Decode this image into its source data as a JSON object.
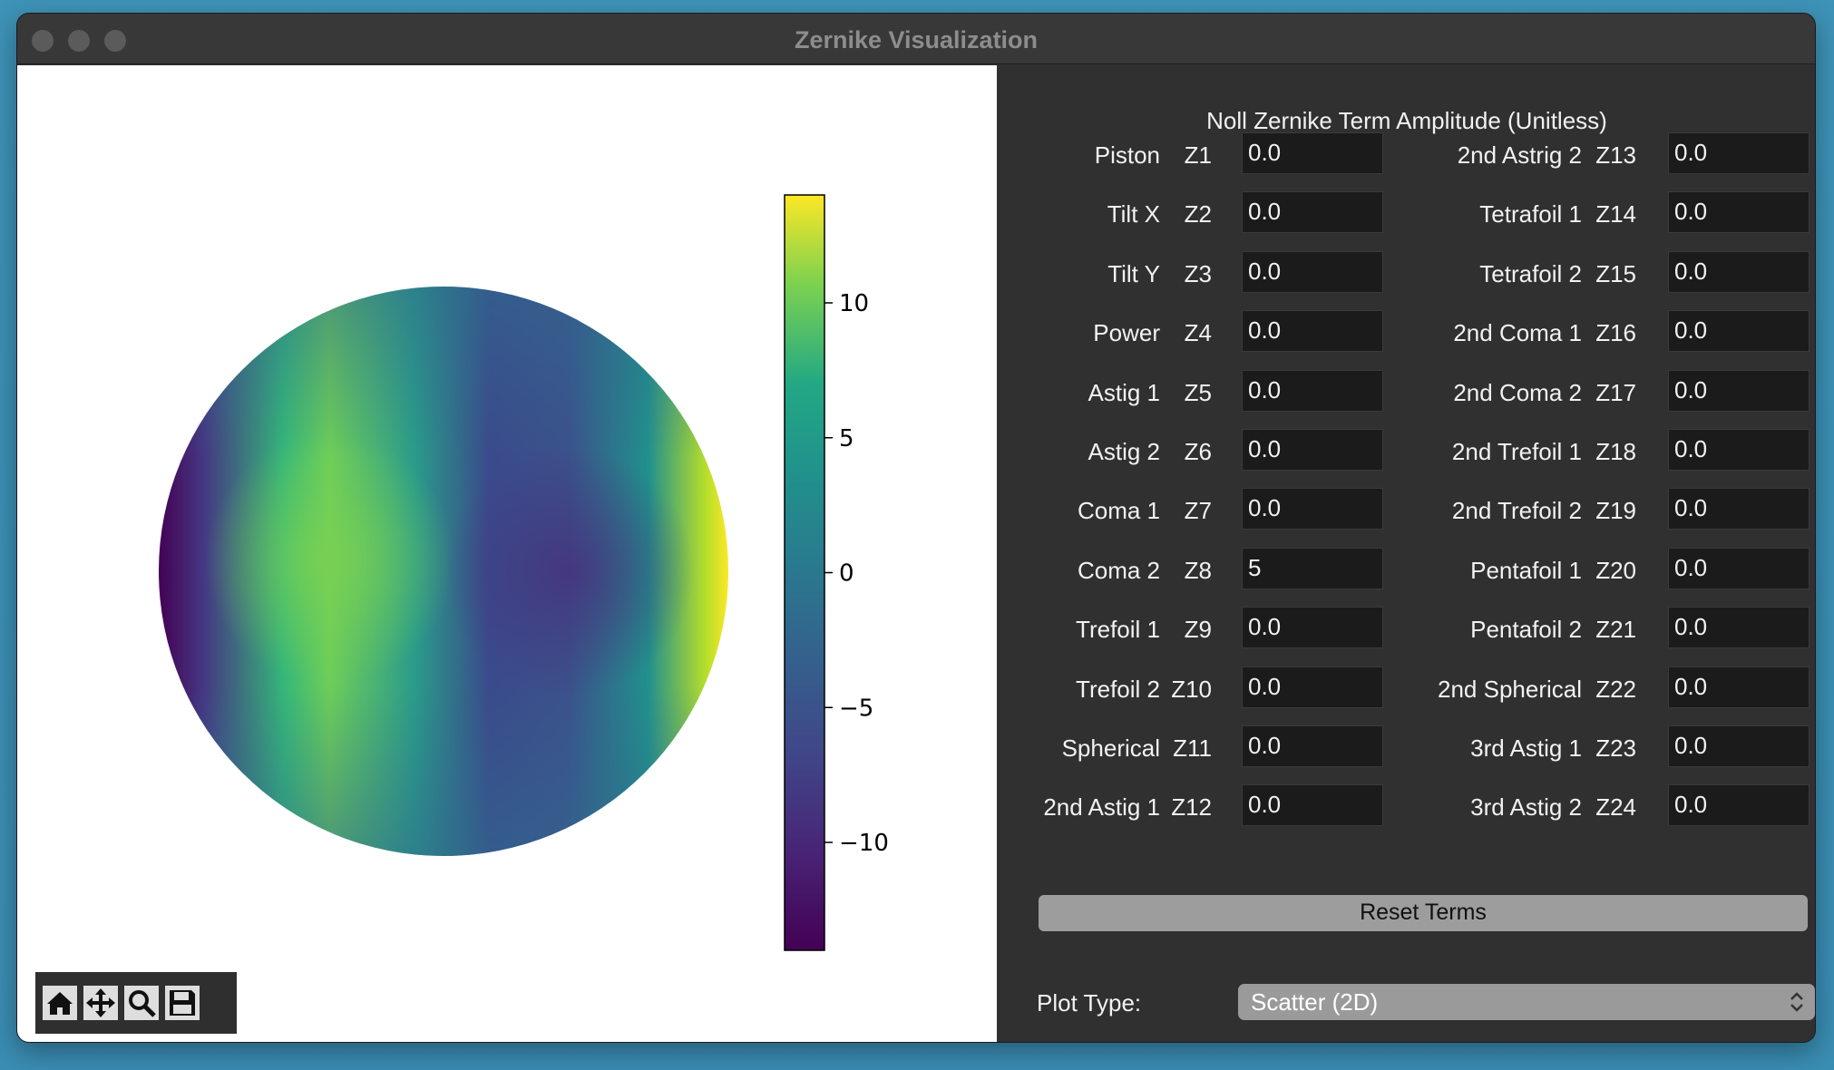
{
  "window": {
    "title": "Zernike Visualization"
  },
  "colorbar": {
    "ticks": [
      "10",
      "5",
      "0",
      "−5",
      "−10"
    ],
    "range": [
      -14,
      14
    ]
  },
  "toolbar": {
    "icons": [
      "home-icon",
      "pan-icon",
      "zoom-icon",
      "save-icon"
    ]
  },
  "panel": {
    "title": "Noll Zernike Term Amplitude (Unitless)",
    "left_terms": [
      {
        "name": "Piston",
        "code": "Z1",
        "value": "0.0"
      },
      {
        "name": "Tilt X",
        "code": "Z2",
        "value": "0.0"
      },
      {
        "name": "Tilt Y",
        "code": "Z3",
        "value": "0.0"
      },
      {
        "name": "Power",
        "code": "Z4",
        "value": "0.0"
      },
      {
        "name": "Astig 1",
        "code": "Z5",
        "value": "0.0"
      },
      {
        "name": "Astig 2",
        "code": "Z6",
        "value": "0.0"
      },
      {
        "name": "Coma 1",
        "code": "Z7",
        "value": "0.0"
      },
      {
        "name": "Coma 2",
        "code": "Z8",
        "value": "5"
      },
      {
        "name": "Trefoil 1",
        "code": "Z9",
        "value": "0.0"
      },
      {
        "name": "Trefoil 2",
        "code": "Z10",
        "value": "0.0"
      },
      {
        "name": "Spherical",
        "code": "Z11",
        "value": "0.0"
      },
      {
        "name": "2nd Astig 1",
        "code": "Z12",
        "value": "0.0"
      }
    ],
    "right_terms": [
      {
        "name": "2nd Astrig 2",
        "code": "Z13",
        "value": "0.0"
      },
      {
        "name": "Tetrafoil 1",
        "code": "Z14",
        "value": "0.0"
      },
      {
        "name": "Tetrafoil 2",
        "code": "Z15",
        "value": "0.0"
      },
      {
        "name": "2nd Coma 1",
        "code": "Z16",
        "value": "0.0"
      },
      {
        "name": "2nd Coma 2",
        "code": "Z17",
        "value": "0.0"
      },
      {
        "name": "2nd Trefoil 1",
        "code": "Z18",
        "value": "0.0"
      },
      {
        "name": "2nd Trefoil 2",
        "code": "Z19",
        "value": "0.0"
      },
      {
        "name": "Pentafoil 1",
        "code": "Z20",
        "value": "0.0"
      },
      {
        "name": "Pentafoil 2",
        "code": "Z21",
        "value": "0.0"
      },
      {
        "name": "2nd Spherical",
        "code": "Z22",
        "value": "0.0"
      },
      {
        "name": "3rd Astig 1",
        "code": "Z23",
        "value": "0.0"
      },
      {
        "name": "3rd Astig 2",
        "code": "Z24",
        "value": "0.0"
      }
    ],
    "reset_label": "Reset Terms",
    "plot_type_label": "Plot Type:",
    "plot_type_value": "Scatter (2D)"
  }
}
